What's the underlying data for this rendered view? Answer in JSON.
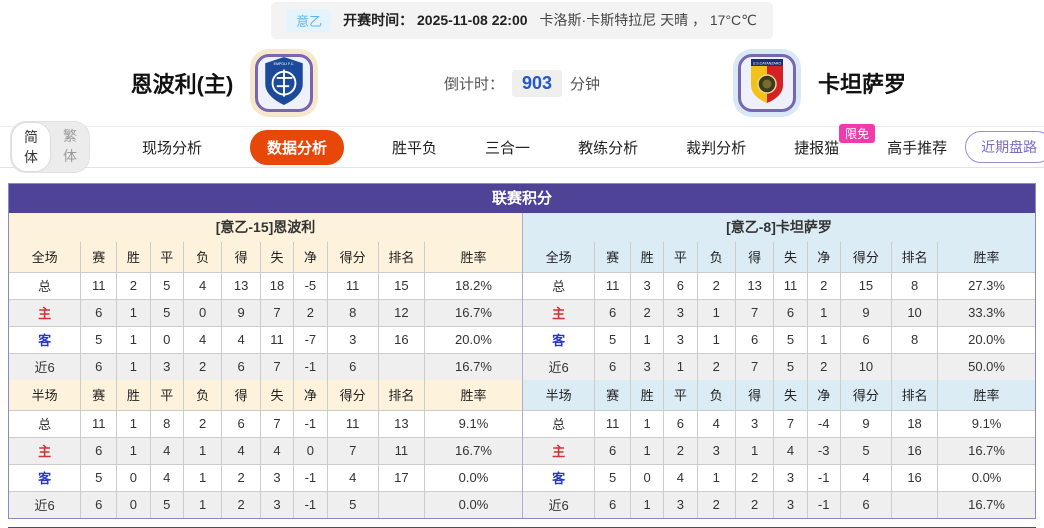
{
  "top_bar": {
    "league_badge": "意乙",
    "kickoff_text": "开赛时间： 2025-11-08 22:00",
    "venue_weather": "卡洛斯·卡斯特拉尼 天晴 ， 17°C℃"
  },
  "match_header": {
    "home_team": "恩波利(主)",
    "away_team": "卡坦萨罗",
    "home_logo": "empoli-crest",
    "away_logo": "catanzaro-crest",
    "countdown_label": "倒计时：",
    "countdown_value": "903",
    "countdown_unit": "分钟"
  },
  "nav": {
    "lang_simplified": "简体",
    "lang_traditional": "繁体",
    "tabs": [
      {
        "label": "现场分析",
        "active": false
      },
      {
        "label": "数据分析",
        "active": true
      },
      {
        "label": "胜平负",
        "active": false
      },
      {
        "label": "三合一",
        "active": false
      },
      {
        "label": "教练分析",
        "active": false
      },
      {
        "label": "裁判分析",
        "active": false
      },
      {
        "label": "捷报猫",
        "active": false,
        "badge": "限免"
      },
      {
        "label": "高手推荐",
        "active": false
      }
    ],
    "right_button": "近期盘路"
  },
  "league_table": {
    "title": "联赛积分",
    "home": {
      "section_title": "[意乙-15]恩波利",
      "full": {
        "headers": [
          "全场",
          "赛",
          "胜",
          "平",
          "负",
          "得",
          "失",
          "净",
          "得分",
          "排名",
          "胜率"
        ],
        "rows": [
          {
            "label": "总",
            "cls": "total",
            "cells": [
              "11",
              "2",
              "5",
              "4",
              "13",
              "18",
              "-5",
              "11",
              "15",
              "18.2%"
            ]
          },
          {
            "label": "主",
            "cls": "home",
            "cells": [
              "6",
              "1",
              "5",
              "0",
              "9",
              "7",
              "2",
              "8",
              "12",
              "16.7%"
            ]
          },
          {
            "label": "客",
            "cls": "away",
            "cells": [
              "5",
              "1",
              "0",
              "4",
              "4",
              "11",
              "-7",
              "3",
              "16",
              "20.0%"
            ]
          },
          {
            "label": "近6",
            "cls": "recent",
            "cells": [
              "6",
              "1",
              "3",
              "2",
              "6",
              "7",
              "-1",
              "6",
              "",
              "16.7%"
            ]
          }
        ]
      },
      "half": {
        "headers": [
          "半场",
          "赛",
          "胜",
          "平",
          "负",
          "得",
          "失",
          "净",
          "得分",
          "排名",
          "胜率"
        ],
        "rows": [
          {
            "label": "总",
            "cls": "total",
            "cells": [
              "11",
              "1",
              "8",
              "2",
              "6",
              "7",
              "-1",
              "11",
              "13",
              "9.1%"
            ]
          },
          {
            "label": "主",
            "cls": "home",
            "cells": [
              "6",
              "1",
              "4",
              "1",
              "4",
              "4",
              "0",
              "7",
              "11",
              "16.7%"
            ]
          },
          {
            "label": "客",
            "cls": "away",
            "cells": [
              "5",
              "0",
              "4",
              "1",
              "2",
              "3",
              "-1",
              "4",
              "17",
              "0.0%"
            ]
          },
          {
            "label": "近6",
            "cls": "recent",
            "cells": [
              "6",
              "0",
              "5",
              "1",
              "2",
              "3",
              "-1",
              "5",
              "",
              "0.0%"
            ]
          }
        ]
      }
    },
    "away": {
      "section_title": "[意乙-8]卡坦萨罗",
      "full": {
        "headers": [
          "全场",
          "赛",
          "胜",
          "平",
          "负",
          "得",
          "失",
          "净",
          "得分",
          "排名",
          "胜率"
        ],
        "rows": [
          {
            "label": "总",
            "cls": "total",
            "cells": [
              "11",
              "3",
              "6",
              "2",
              "13",
              "11",
              "2",
              "15",
              "8",
              "27.3%"
            ]
          },
          {
            "label": "主",
            "cls": "home",
            "cells": [
              "6",
              "2",
              "3",
              "1",
              "7",
              "6",
              "1",
              "9",
              "10",
              "33.3%"
            ]
          },
          {
            "label": "客",
            "cls": "away",
            "cells": [
              "5",
              "1",
              "3",
              "1",
              "6",
              "5",
              "1",
              "6",
              "8",
              "20.0%"
            ]
          },
          {
            "label": "近6",
            "cls": "recent",
            "cells": [
              "6",
              "3",
              "1",
              "2",
              "7",
              "5",
              "2",
              "10",
              "",
              "50.0%"
            ]
          }
        ]
      },
      "half": {
        "headers": [
          "半场",
          "赛",
          "胜",
          "平",
          "负",
          "得",
          "失",
          "净",
          "得分",
          "排名",
          "胜率"
        ],
        "rows": [
          {
            "label": "总",
            "cls": "total",
            "cells": [
              "11",
              "1",
              "6",
              "4",
              "3",
              "7",
              "-4",
              "9",
              "18",
              "9.1%"
            ]
          },
          {
            "label": "主",
            "cls": "home",
            "cells": [
              "6",
              "1",
              "2",
              "3",
              "1",
              "4",
              "-3",
              "5",
              "16",
              "16.7%"
            ]
          },
          {
            "label": "客",
            "cls": "away",
            "cells": [
              "5",
              "0",
              "4",
              "1",
              "2",
              "3",
              "-1",
              "4",
              "16",
              "0.0%"
            ]
          },
          {
            "label": "近6",
            "cls": "recent",
            "cells": [
              "6",
              "1",
              "3",
              "2",
              "2",
              "3",
              "-1",
              "6",
              "",
              "16.7%"
            ]
          }
        ]
      }
    }
  },
  "colors": {
    "panel_header_purple": "#4e4397",
    "active_tab_orange": "#e8470a",
    "badge_pink": "#f13bab",
    "home_section_cream": "#fdf3dc",
    "away_section_blue": "#dcecf5",
    "home_row_red": "#d03434",
    "away_row_blue": "#2936cc",
    "countdown_blue": "#2456cd",
    "league_badge_blue": "#5fb5e9",
    "outline_button_purple": "#7b6cc8"
  }
}
